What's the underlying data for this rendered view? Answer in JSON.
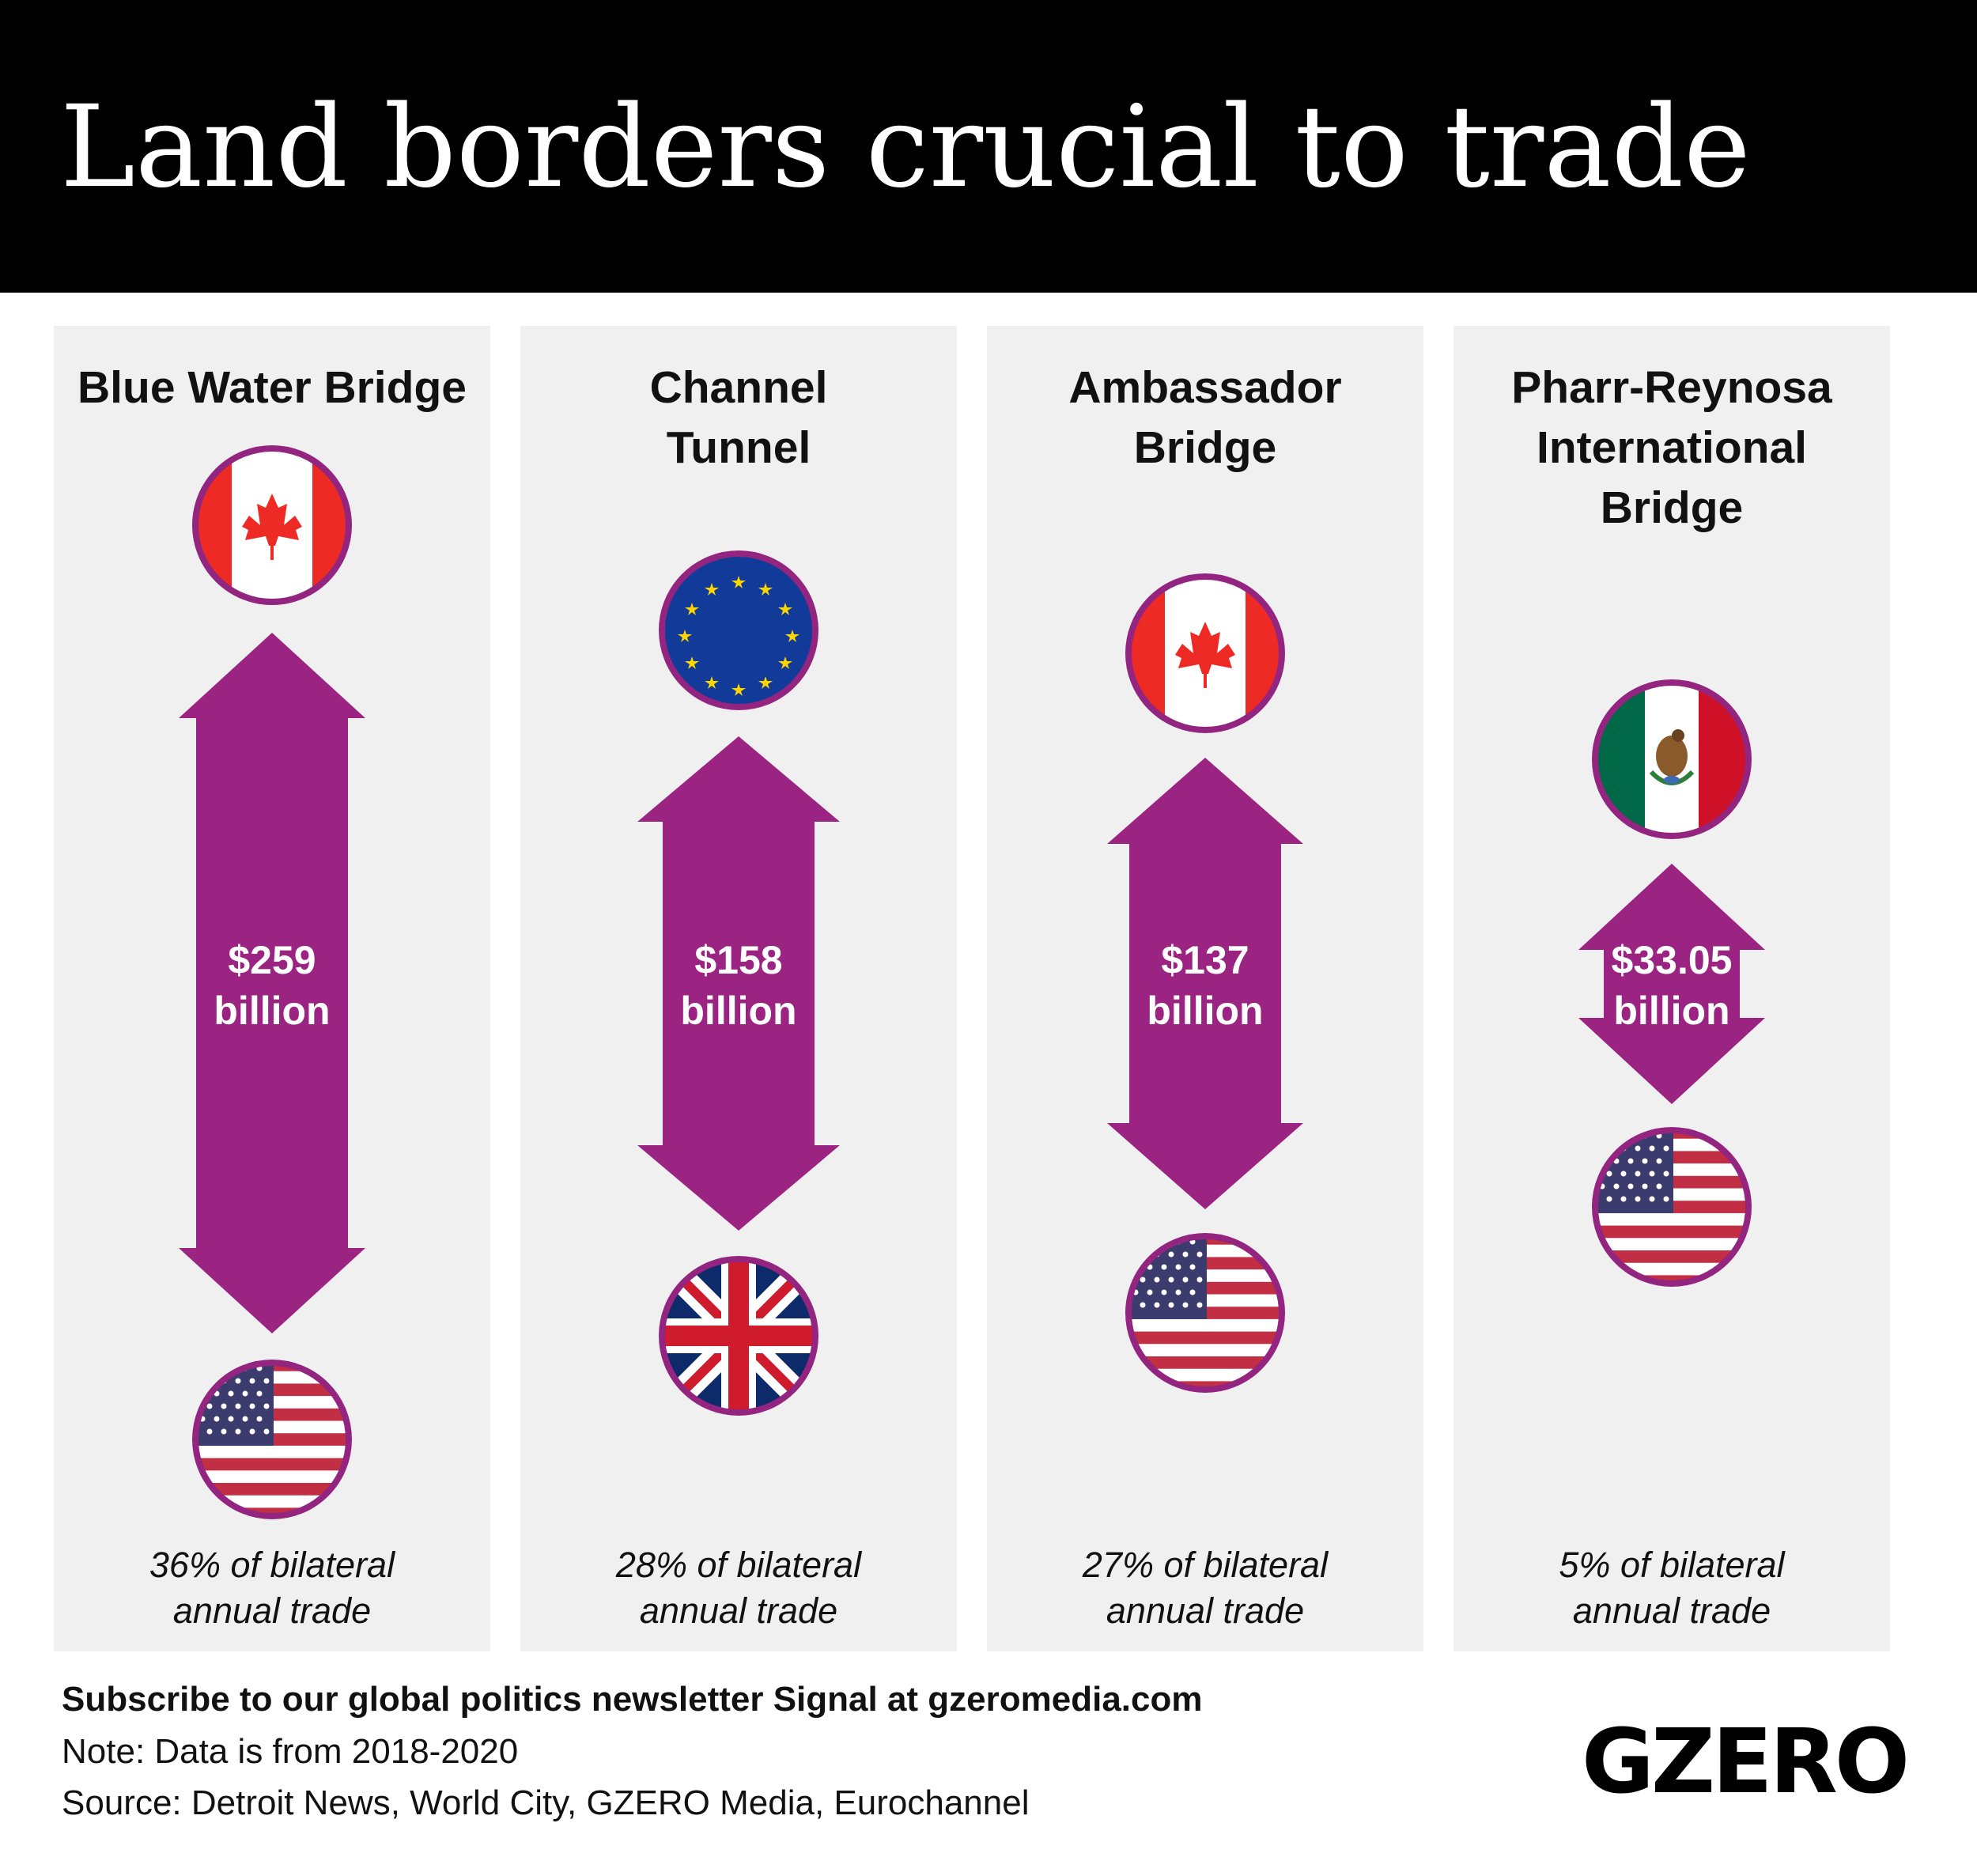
{
  "title": "Land borders crucial to trade",
  "colors": {
    "accent": "#9b2382",
    "header": "#000000",
    "panel": "#f0f0f0"
  },
  "chart_data": {
    "type": "bar",
    "unit": "billion",
    "categories": [
      "Blue Water Bridge",
      "Channel Tunnel",
      "Ambassador Bridge",
      "Pharr-Reynosa International Bridge"
    ],
    "values": [
      259,
      158,
      137,
      33.05
    ],
    "value_labels": [
      "$259",
      "$158",
      "$137",
      "$33.05"
    ],
    "from": [
      "Canada",
      "EU",
      "Canada",
      "Mexico"
    ],
    "to": [
      "USA",
      "UK",
      "USA",
      "USA"
    ],
    "share_percent": [
      36,
      28,
      27,
      5
    ]
  },
  "panels": [
    {
      "name_lines": [
        "Blue Water Bridge"
      ],
      "value_lines": [
        "$259",
        "billion"
      ],
      "share_lines": [
        "36% of bilateral",
        "annual trade"
      ],
      "top_flag": "canada-flag-icon",
      "bottom_flag": "us-flag-icon"
    },
    {
      "name_lines": [
        "Channel",
        "Tunnel"
      ],
      "value_lines": [
        "$158",
        "billion"
      ],
      "share_lines": [
        "28% of bilateral",
        "annual trade"
      ],
      "top_flag": "eu-flag-icon",
      "bottom_flag": "uk-flag-icon"
    },
    {
      "name_lines": [
        "Ambassador",
        "Bridge"
      ],
      "value_lines": [
        "$137",
        "billion"
      ],
      "share_lines": [
        "27% of bilateral",
        "annual trade"
      ],
      "top_flag": "canada-flag-icon",
      "bottom_flag": "us-flag-icon"
    },
    {
      "name_lines": [
        "Pharr-Reynosa",
        "International",
        "Bridge"
      ],
      "value_lines": [
        "$33.05",
        "billion"
      ],
      "share_lines": [
        "5% of bilateral",
        "annual trade"
      ],
      "top_flag": "mexico-flag-icon",
      "bottom_flag": "us-flag-icon"
    }
  ],
  "footer": {
    "subscribe": "Subscribe to our global politics newsletter Signal at gzeromedia.com",
    "note": "Note: Data is from 2018-2020",
    "source": "Source: Detroit News, World City, GZERO Media, Eurochannel",
    "logo": "GZERO"
  }
}
